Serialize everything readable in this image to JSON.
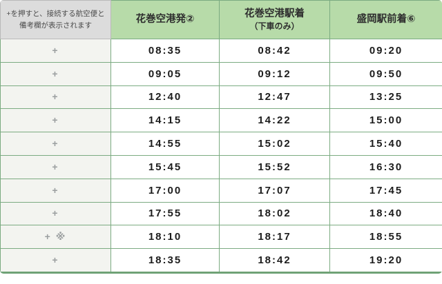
{
  "colors": {
    "header_green": "#b7dba9",
    "header_gray": "#dcdcdc",
    "row_label_gray": "#f3f4f0",
    "border_green": "#7bab81",
    "time_text": "#1c1c1c",
    "plus_gray": "#9b9fa0"
  },
  "header": {
    "note_line1": "+を押すと、接続する航空便と",
    "note_line2": "備考欄が表示されます",
    "col_depart": "花巻空港発②",
    "col_station_line1": "花巻空港駅着",
    "col_station_line2": "（下車のみ）",
    "col_arrive": "盛岡駅前着⑥"
  },
  "rows": [
    {
      "indicator": "+",
      "depart": "08:35",
      "station": "08:42",
      "arrive": "09:20"
    },
    {
      "indicator": "+",
      "depart": "09:05",
      "station": "09:12",
      "arrive": "09:50"
    },
    {
      "indicator": "+",
      "depart": "12:40",
      "station": "12:47",
      "arrive": "13:25"
    },
    {
      "indicator": "+",
      "depart": "14:15",
      "station": "14:22",
      "arrive": "15:00"
    },
    {
      "indicator": "+",
      "depart": "14:55",
      "station": "15:02",
      "arrive": "15:40"
    },
    {
      "indicator": "+",
      "depart": "15:45",
      "station": "15:52",
      "arrive": "16:30"
    },
    {
      "indicator": "+",
      "depart": "17:00",
      "station": "17:07",
      "arrive": "17:45"
    },
    {
      "indicator": "+",
      "depart": "17:55",
      "station": "18:02",
      "arrive": "18:40"
    },
    {
      "indicator": "+ ※",
      "depart": "18:10",
      "station": "18:17",
      "arrive": "18:55"
    },
    {
      "indicator": "+",
      "depart": "18:35",
      "station": "18:42",
      "arrive": "19:20"
    }
  ]
}
